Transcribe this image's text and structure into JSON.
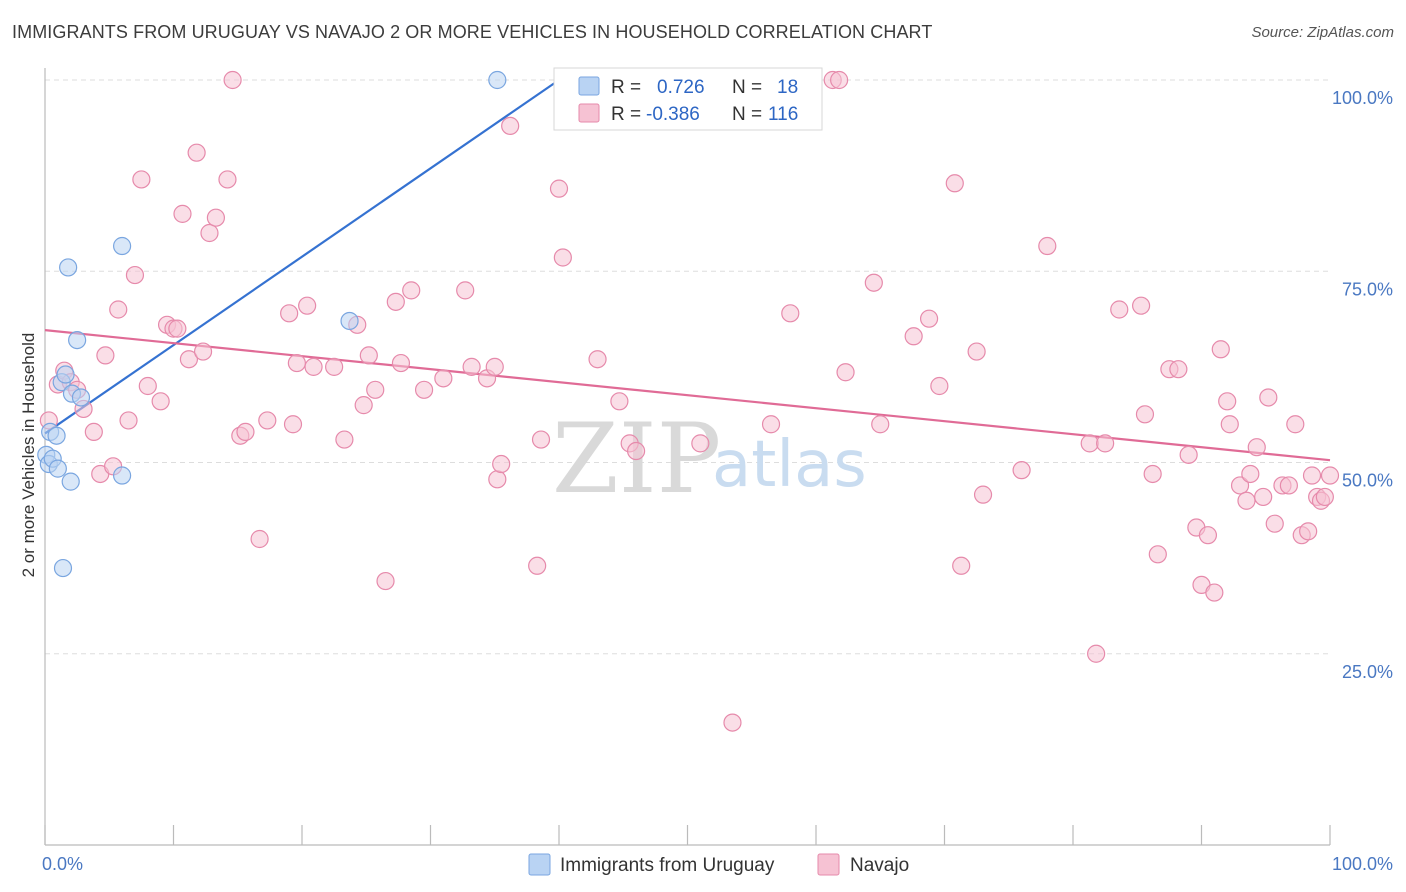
{
  "title": "IMMIGRANTS FROM URUGUAY VS NAVAJO 2 OR MORE VEHICLES IN HOUSEHOLD CORRELATION CHART",
  "source": "Source: ZipAtlas.com",
  "watermark": {
    "zip": "ZIP",
    "atlas": "atlas"
  },
  "colors": {
    "blue_fill": "#b9d3f3",
    "blue_stroke": "#7aa6e0",
    "blue_line": "#3572d1",
    "pink_fill": "#f6c2d3",
    "pink_stroke": "#e68aab",
    "pink_line": "#e06b96",
    "grid": "#dddddd",
    "tick": "#4a78c2"
  },
  "legend": {
    "rows": [
      {
        "r_label": "R =",
        "r_value": "0.726",
        "n_label": "N =",
        "n_value": "18"
      },
      {
        "r_label": "R =",
        "r_value": "-0.386",
        "n_label": "N =",
        "n_value": "116"
      }
    ]
  },
  "chart_data": {
    "type": "scatter",
    "title": "IMMIGRANTS FROM URUGUAY VS NAVAJO 2 OR MORE VEHICLES IN HOUSEHOLD CORRELATION CHART",
    "xlabel": "",
    "ylabel": "2 or more Vehicles in Household",
    "xlim": [
      0,
      100
    ],
    "ylim": [
      0,
      100
    ],
    "x_tick_labels": [
      "0.0%",
      "100.0%"
    ],
    "y_ticks": [
      {
        "value": 25,
        "label": "25.0%"
      },
      {
        "value": 50,
        "label": "50.0%"
      },
      {
        "value": 75,
        "label": "75.0%"
      },
      {
        "value": 100,
        "label": "100.0%"
      }
    ],
    "series": [
      {
        "name": "Immigrants from Uruguay",
        "color": "#b9d3f3",
        "trend": {
          "x0": 0.0,
          "y0": 53.8,
          "x1": 40.0,
          "y1": 100.0
        },
        "points": [
          [
            0.1,
            51.0
          ],
          [
            0.3,
            49.8
          ],
          [
            0.4,
            54.0
          ],
          [
            0.6,
            50.5
          ],
          [
            0.9,
            53.5
          ],
          [
            1.0,
            49.2
          ],
          [
            1.3,
            60.5
          ],
          [
            1.6,
            61.5
          ],
          [
            1.8,
            75.5
          ],
          [
            2.0,
            47.5
          ],
          [
            2.1,
            59.0
          ],
          [
            2.5,
            66.0
          ],
          [
            2.8,
            58.5
          ],
          [
            6.0,
            78.3
          ],
          [
            6.0,
            48.3
          ],
          [
            1.4,
            36.2
          ],
          [
            23.7,
            68.5
          ],
          [
            35.2,
            100.0
          ]
        ]
      },
      {
        "name": "Navajo",
        "color": "#f6c2d3",
        "trend": {
          "x0": 0.0,
          "y0": 67.3,
          "x1": 100.0,
          "y1": 50.3
        },
        "points": [
          [
            0.3,
            55.5
          ],
          [
            1.0,
            60.2
          ],
          [
            1.5,
            62.0
          ],
          [
            2.0,
            60.5
          ],
          [
            2.5,
            59.5
          ],
          [
            3.0,
            57.0
          ],
          [
            3.8,
            54.0
          ],
          [
            4.3,
            48.5
          ],
          [
            4.7,
            64.0
          ],
          [
            5.3,
            49.5
          ],
          [
            5.7,
            70.0
          ],
          [
            6.5,
            55.5
          ],
          [
            7.0,
            74.5
          ],
          [
            7.5,
            87.0
          ],
          [
            8.0,
            60.0
          ],
          [
            9.0,
            58.0
          ],
          [
            9.5,
            68.0
          ],
          [
            10.0,
            67.5
          ],
          [
            10.3,
            67.5
          ],
          [
            10.7,
            82.5
          ],
          [
            11.2,
            63.5
          ],
          [
            11.8,
            90.5
          ],
          [
            12.3,
            64.5
          ],
          [
            12.8,
            80.0
          ],
          [
            13.3,
            82.0
          ],
          [
            14.2,
            87.0
          ],
          [
            14.6,
            100.0
          ],
          [
            15.2,
            53.5
          ],
          [
            15.6,
            54.0
          ],
          [
            16.7,
            40.0
          ],
          [
            17.3,
            55.5
          ],
          [
            19.0,
            69.5
          ],
          [
            19.3,
            55.0
          ],
          [
            19.6,
            63.0
          ],
          [
            20.4,
            70.5
          ],
          [
            20.9,
            62.5
          ],
          [
            22.5,
            62.5
          ],
          [
            23.3,
            53.0
          ],
          [
            24.3,
            68.0
          ],
          [
            24.8,
            57.5
          ],
          [
            25.2,
            64.0
          ],
          [
            25.7,
            59.5
          ],
          [
            26.5,
            34.5
          ],
          [
            27.3,
            71.0
          ],
          [
            27.7,
            63.0
          ],
          [
            28.5,
            72.5
          ],
          [
            29.5,
            59.5
          ],
          [
            31.0,
            61.0
          ],
          [
            32.7,
            72.5
          ],
          [
            33.2,
            62.5
          ],
          [
            34.4,
            61.0
          ],
          [
            35.2,
            47.8
          ],
          [
            35.5,
            49.8
          ],
          [
            36.2,
            94.0
          ],
          [
            38.3,
            36.5
          ],
          [
            38.6,
            53.0
          ],
          [
            40.0,
            85.8
          ],
          [
            40.3,
            76.8
          ],
          [
            43.0,
            63.5
          ],
          [
            44.7,
            58.0
          ],
          [
            45.5,
            52.5
          ],
          [
            46.0,
            51.5
          ],
          [
            51.0,
            52.5
          ],
          [
            53.5,
            16.0
          ],
          [
            56.5,
            55.0
          ],
          [
            58.0,
            69.5
          ],
          [
            61.3,
            100.0
          ],
          [
            61.8,
            100.0
          ],
          [
            62.3,
            61.8
          ],
          [
            64.5,
            73.5
          ],
          [
            65.0,
            55.0
          ],
          [
            67.6,
            66.5
          ],
          [
            68.8,
            68.8
          ],
          [
            69.6,
            60.0
          ],
          [
            70.8,
            86.5
          ],
          [
            71.3,
            36.5
          ],
          [
            72.5,
            64.5
          ],
          [
            73.0,
            45.8
          ],
          [
            76.0,
            49.0
          ],
          [
            78.0,
            78.3
          ],
          [
            81.3,
            52.5
          ],
          [
            81.8,
            25.0
          ],
          [
            82.5,
            52.5
          ],
          [
            83.6,
            70.0
          ],
          [
            85.3,
            70.5
          ],
          [
            85.6,
            56.3
          ],
          [
            86.2,
            48.5
          ],
          [
            86.6,
            38.0
          ],
          [
            87.5,
            62.2
          ],
          [
            88.2,
            62.2
          ],
          [
            89.0,
            51.0
          ],
          [
            89.6,
            41.5
          ],
          [
            90.0,
            34.0
          ],
          [
            90.5,
            40.5
          ],
          [
            91.0,
            33.0
          ],
          [
            91.5,
            64.8
          ],
          [
            92.0,
            58.0
          ],
          [
            92.2,
            55.0
          ],
          [
            93.0,
            47.0
          ],
          [
            93.5,
            45.0
          ],
          [
            93.8,
            48.5
          ],
          [
            94.3,
            52.0
          ],
          [
            94.8,
            45.5
          ],
          [
            95.2,
            58.5
          ],
          [
            95.7,
            42.0
          ],
          [
            96.3,
            47.0
          ],
          [
            96.8,
            47.0
          ],
          [
            97.3,
            55.0
          ],
          [
            97.8,
            40.5
          ],
          [
            98.3,
            41.0
          ],
          [
            98.6,
            48.3
          ],
          [
            99.0,
            45.5
          ],
          [
            99.3,
            45.0
          ],
          [
            99.6,
            45.5
          ],
          [
            100.0,
            48.3
          ],
          [
            35.0,
            62.5
          ]
        ]
      }
    ],
    "legend": [
      {
        "label": "Immigrants from Uruguay",
        "color": "#b9d3f3"
      },
      {
        "label": "Navajo",
        "color": "#f6c2d3"
      }
    ]
  }
}
